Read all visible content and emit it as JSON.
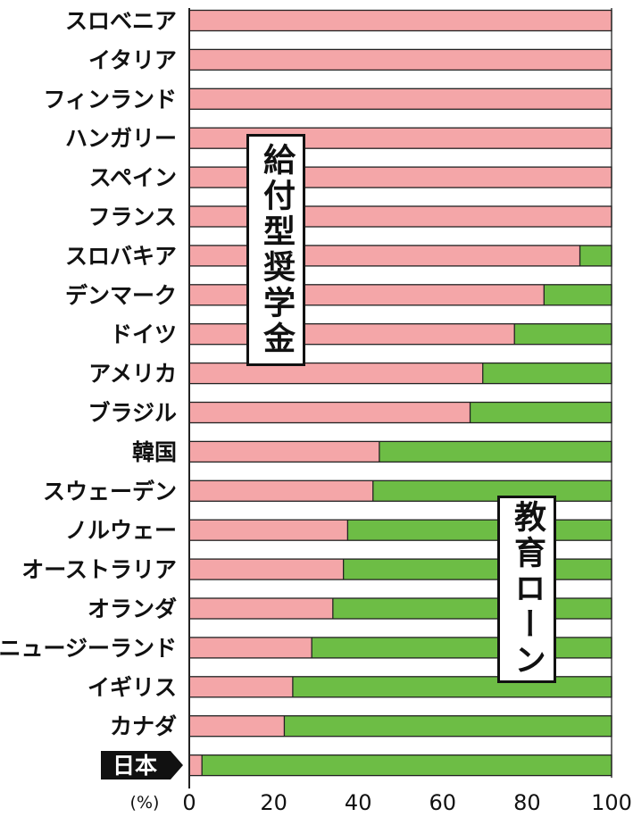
{
  "chart_data": {
    "type": "bar",
    "orientation": "horizontal",
    "stacked": true,
    "categories": [
      "スロベニア",
      "イタリア",
      "フィンランド",
      "ハンガリー",
      "スペイン",
      "フランス",
      "スロバキア",
      "デンマーク",
      "ドイツ",
      "アメリカ",
      "ブラジル",
      "韓国",
      "スウェーデン",
      "ノルウェー",
      "オーストラリア",
      "オランダ",
      "ニュージーランド",
      "イギリス",
      "カナダ",
      "日本"
    ],
    "series": [
      {
        "name": "給付型奨学金",
        "color": "#f4a6a8",
        "values": [
          100,
          100,
          100,
          100,
          100,
          100,
          92.5,
          84,
          77,
          69.5,
          66.5,
          45,
          43.5,
          37.5,
          36.5,
          34,
          29,
          24.5,
          22.5,
          3
        ]
      },
      {
        "name": "教育ローン",
        "color": "#6dbd45",
        "values": [
          0,
          0,
          0,
          0,
          0,
          0,
          7.5,
          16,
          23,
          30.5,
          33.5,
          55,
          56.5,
          62.5,
          63.5,
          66,
          71,
          75.5,
          77.5,
          97
        ]
      }
    ],
    "xlim": [
      0,
      100
    ],
    "xticks": [
      "0",
      "20",
      "40",
      "60",
      "80",
      "100"
    ],
    "unit_label": "(%)",
    "highlight_category": "日本",
    "grid": false
  }
}
